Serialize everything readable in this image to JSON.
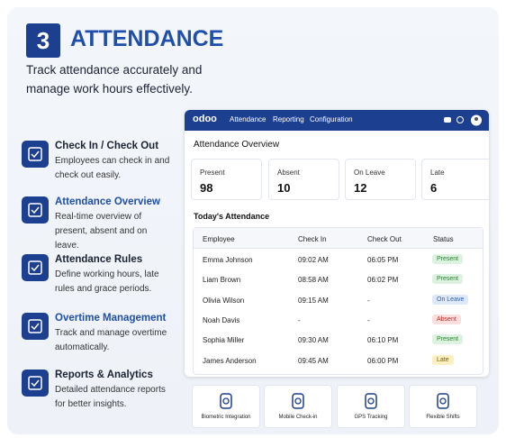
{
  "header": {
    "number": "3",
    "title": "ATTENDANCE",
    "subtitle_lines": [
      "Track attendance accurately and",
      "manage work hours effectively."
    ]
  },
  "features": [
    {
      "title": "Check In / Check Out",
      "description": "Employees can check in and check out easily."
    },
    {
      "title": "Attendance Overview",
      "description": "Real-time overview of present, absent and on leave."
    },
    {
      "title": "Attendance Rules",
      "description": "Define working hours, late rules and grace periods."
    },
    {
      "title": "Overtime Management",
      "description": "Track and manage overtime automatically."
    },
    {
      "title": "Reports & Analytics",
      "description": "Detailed attendance reports for better insights."
    }
  ],
  "app": {
    "logo": "odoo",
    "nav": [
      "Attendance",
      "Reporting",
      "Configuration"
    ],
    "overview_title": "Attendance Overview",
    "stats": [
      {
        "label": "Present",
        "value": "98"
      },
      {
        "label": "Absent",
        "value": "10"
      },
      {
        "label": "On Leave",
        "value": "12"
      },
      {
        "label": "Late",
        "value": "6"
      }
    ],
    "table_title": "Today's Attendance",
    "table": {
      "columns": [
        "Employee",
        "Check In",
        "Check Out",
        "Status"
      ],
      "rows": [
        [
          "Emma Johnson",
          "09:02 AM",
          "06:05 PM",
          "Present"
        ],
        [
          "Liam Brown",
          "08:58 AM",
          "06:02 PM",
          "Present"
        ],
        [
          "Olivia Wilson",
          "09:15 AM",
          "-",
          "On Leave"
        ],
        [
          "Noah Davis",
          "-",
          "-",
          "Absent"
        ],
        [
          "Sophia Miller",
          "09:30 AM",
          "06:10 PM",
          "Present"
        ],
        [
          "James Anderson",
          "09:45 AM",
          "06:00 PM",
          "Late"
        ]
      ]
    }
  },
  "bottom_cards": [
    "Biometric Integration",
    "Mobile Check-in",
    "GPS Tracking",
    "Flexible Shifts"
  ]
}
